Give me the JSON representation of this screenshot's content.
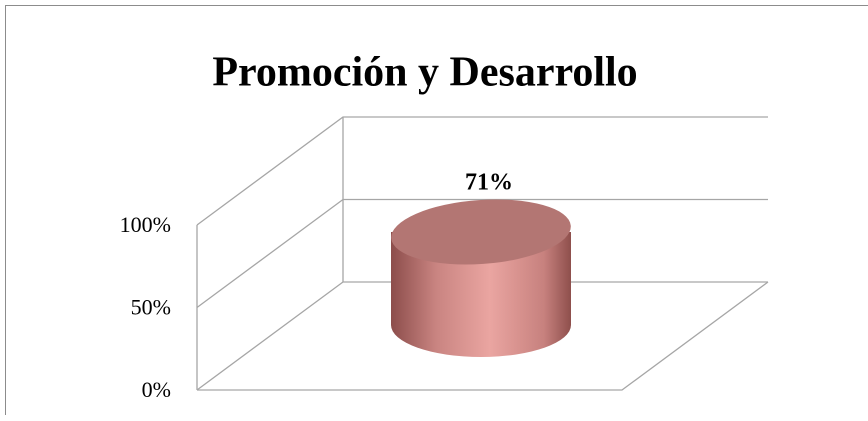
{
  "chart_data": {
    "type": "cylinder",
    "title": "Promoción y Desarrollo",
    "categories": [
      null
    ],
    "values": [
      71
    ],
    "value_labels": [
      "71%"
    ],
    "color": "#e09a96",
    "ylim": [
      0,
      100
    ],
    "yticks": [
      {
        "value": 0,
        "label": "0%"
      },
      {
        "value": 50,
        "label": "50%"
      },
      {
        "value": 100,
        "label": "100%"
      }
    ],
    "grid": true
  }
}
